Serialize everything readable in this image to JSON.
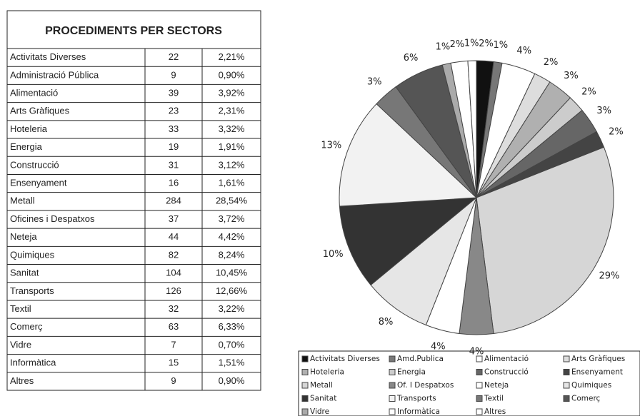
{
  "table": {
    "title": "PROCEDIMENTS PER SECTORS",
    "rows": [
      [
        "Activitats Diverses",
        22,
        "2,21%"
      ],
      [
        "Administració Pública",
        9,
        "0,90%"
      ],
      [
        "Alimentació",
        39,
        "3,92%"
      ],
      [
        "Arts Gràfiques",
        23,
        "2,31%"
      ],
      [
        "Hoteleria",
        33,
        "3,32%"
      ],
      [
        "Energia",
        19,
        "1,91%"
      ],
      [
        "Construcció",
        31,
        "3,12%"
      ],
      [
        "Ensenyament",
        16,
        "1,61%"
      ],
      [
        "Metall",
        284,
        "28,54%"
      ],
      [
        "Oficines i Despatxos",
        37,
        "3,72%"
      ],
      [
        "Neteja",
        44,
        "4,42%"
      ],
      [
        "Quimiques",
        82,
        "8,24%"
      ],
      [
        "Sanitat",
        104,
        "10,45%"
      ],
      [
        "Transports",
        126,
        "12,66%"
      ],
      [
        "Textil",
        32,
        "3,22%"
      ],
      [
        "Comerç",
        63,
        "6,33%"
      ],
      [
        "Vidre",
        7,
        "0,70%"
      ],
      [
        "Informàtica",
        15,
        "1,51%"
      ],
      [
        "Altres",
        9,
        "0,90%"
      ]
    ]
  },
  "chart_data": {
    "type": "pie",
    "categories": [
      "Activitats Diverses",
      "Amd.Publica",
      "Alimentació",
      "Arts Gràfiques",
      "Hoteleria",
      "Energia",
      "Construcció",
      "Ensenyament",
      "Metall",
      "Of. I Despatxos",
      "Neteja",
      "Quimiques",
      "Sanitat",
      "Transports",
      "Textil",
      "Comerç",
      "Vidre",
      "Informàtica",
      "Altres"
    ],
    "values": [
      2,
      1,
      4,
      2,
      3,
      2,
      3,
      2,
      29,
      4,
      4,
      8,
      10,
      13,
      3,
      6,
      1,
      2,
      1
    ],
    "value_labels": [
      "2%",
      "1%",
      "4%",
      "2%",
      "3%",
      "2%",
      "3%",
      "2%",
      "29%",
      "4%",
      "4%",
      "8%",
      "10%",
      "13%",
      "3%",
      "6%",
      "1%",
      "2%",
      "1%"
    ],
    "colors": [
      "#111111",
      "#777777",
      "#ffffff",
      "#dddddd",
      "#b0b0b0",
      "#cccccc",
      "#666666",
      "#444444",
      "#d6d6d6",
      "#888888",
      "#ffffff",
      "#e6e6e6",
      "#333333",
      "#f2f2f2",
      "#777777",
      "#555555",
      "#aaaaaa",
      "#ffffff",
      "#ffffff"
    ]
  }
}
